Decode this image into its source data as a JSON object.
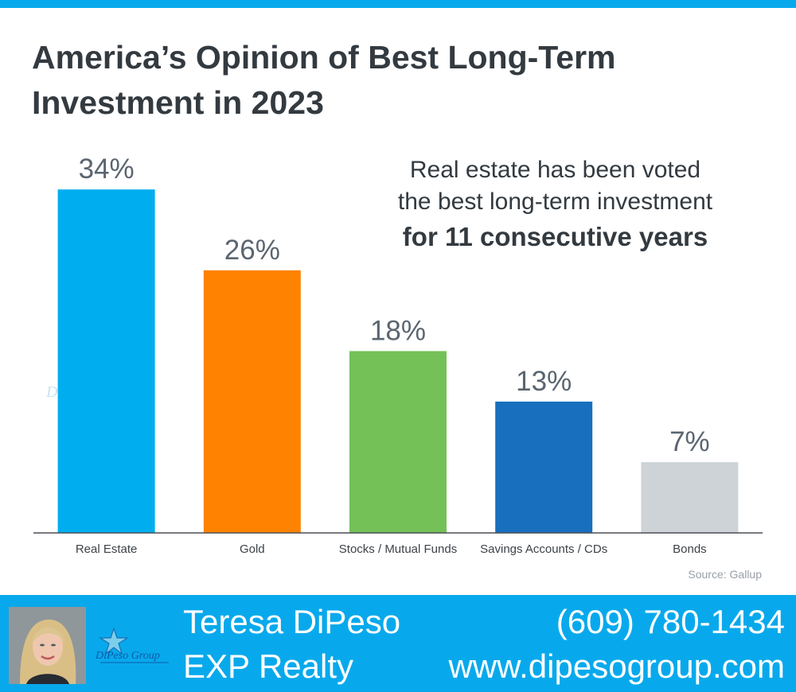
{
  "header": {
    "title_line1": "America’s Opinion of Best Long-Term",
    "title_line2": "Investment in 2023"
  },
  "callout": {
    "line1": "Real estate has been voted",
    "line2": "the best long-term investment",
    "line3": "for 11 consecutive years"
  },
  "watermark": {
    "text": "DiPeso Group"
  },
  "chart_data": {
    "type": "bar",
    "title": "America’s Opinion of Best Long-Term Investment in 2023",
    "categories": [
      "Real Estate",
      "Gold",
      "Stocks / Mutual Funds",
      "Savings Accounts / CDs",
      "Bonds"
    ],
    "values": [
      34,
      26,
      18,
      13,
      7
    ],
    "value_labels": [
      "34%",
      "26%",
      "18%",
      "13%",
      "7%"
    ],
    "colors": [
      "#00aeef",
      "#ff8200",
      "#74c157",
      "#176fbe",
      "#cdd3d6"
    ],
    "xlabel": "",
    "ylabel": "",
    "ylim": [
      0,
      40
    ],
    "grid": false,
    "source": "Source: Gallup"
  },
  "footer": {
    "name": "Teresa DiPeso",
    "company": "EXP Realty",
    "phone": "(609) 780-1434",
    "website": "www.dipesogroup.com",
    "logo_text": "DiPeso Group"
  },
  "colors": {
    "accent": "#08a9ec",
    "title_text": "#333a40",
    "value_label": "#5a6570",
    "axis_label": "#3c4248",
    "source": "#9aa0a6"
  }
}
